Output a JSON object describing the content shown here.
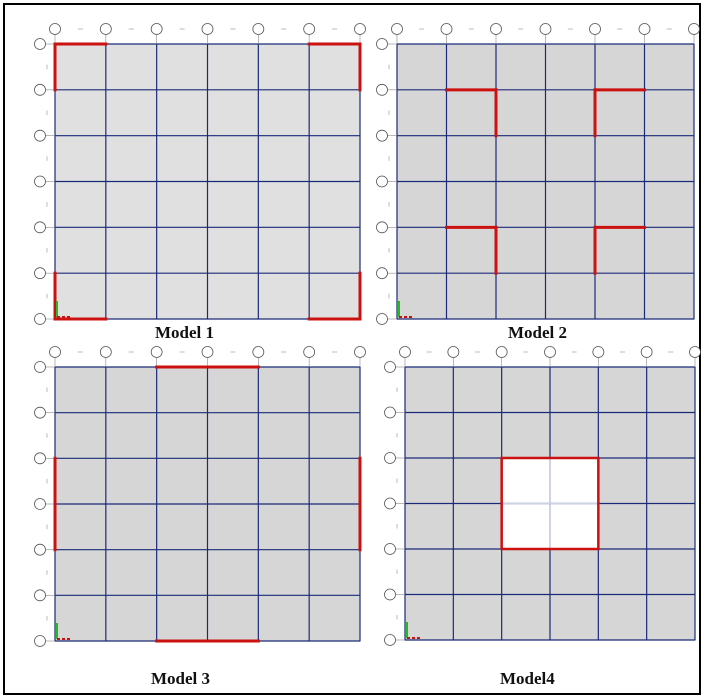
{
  "figure": {
    "grid_columns": 6,
    "grid_rows": 6,
    "colors": {
      "slab_fill": "#d6d6d6",
      "slab_fill_light": "#e0e0e0",
      "grid_line": "#1b2a78",
      "shear_wall": "#cc1111",
      "opening_fill": "#ffffff",
      "axis_green": "#22bb22",
      "bubble_stroke": "#555555"
    },
    "panels": [
      {
        "caption": "Model 1",
        "fill": "light",
        "walls": [
          {
            "col": 0,
            "row": 0,
            "edges": [
              "top",
              "left"
            ]
          },
          {
            "col": 5,
            "row": 0,
            "edges": [
              "top",
              "right"
            ]
          },
          {
            "col": 0,
            "row": 5,
            "edges": [
              "bottom",
              "left"
            ]
          },
          {
            "col": 5,
            "row": 5,
            "edges": [
              "bottom",
              "right"
            ]
          }
        ],
        "openings": []
      },
      {
        "caption": "Model 2",
        "fill": "dark",
        "walls": [
          {
            "col": 1,
            "row": 1,
            "edges": [
              "top",
              "right"
            ]
          },
          {
            "col": 4,
            "row": 1,
            "edges": [
              "top",
              "left"
            ]
          },
          {
            "col": 1,
            "row": 4,
            "edges": [
              "top",
              "right"
            ]
          },
          {
            "col": 4,
            "row": 4,
            "edges": [
              "top",
              "left"
            ]
          }
        ],
        "openings": []
      },
      {
        "caption": "Model 3",
        "fill": "dark",
        "walls": [
          {
            "col": 2,
            "row": 0,
            "edges": [
              "top"
            ]
          },
          {
            "col": 3,
            "row": 0,
            "edges": [
              "top"
            ]
          },
          {
            "col": 2,
            "row": 5,
            "edges": [
              "bottom"
            ]
          },
          {
            "col": 3,
            "row": 5,
            "edges": [
              "bottom"
            ]
          },
          {
            "col": 0,
            "row": 2,
            "edges": [
              "left"
            ]
          },
          {
            "col": 0,
            "row": 3,
            "edges": [
              "left"
            ]
          },
          {
            "col": 5,
            "row": 2,
            "edges": [
              "right"
            ]
          },
          {
            "col": 5,
            "row": 3,
            "edges": [
              "right"
            ]
          }
        ],
        "openings": []
      },
      {
        "caption": "Model4",
        "fill": "dark",
        "walls": [],
        "openings": [
          {
            "col": 2,
            "row": 2,
            "cols": 2,
            "rows": 2
          }
        ]
      }
    ]
  }
}
